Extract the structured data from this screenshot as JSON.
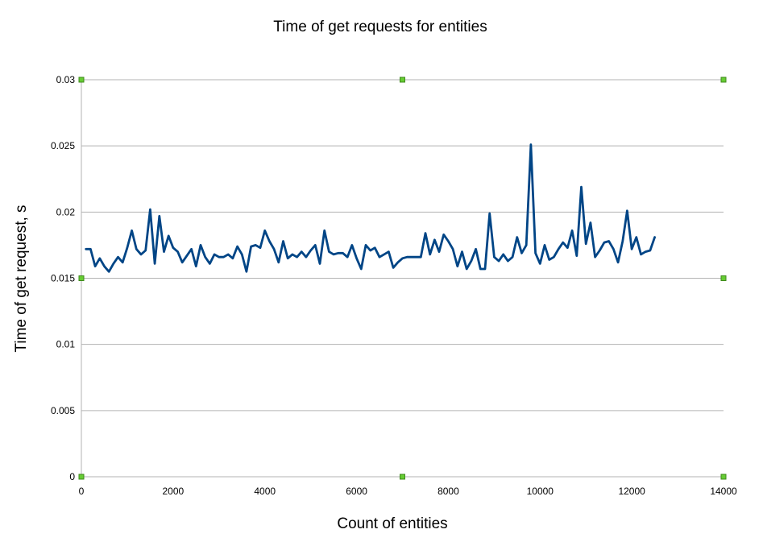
{
  "chart_data": {
    "type": "line",
    "title": "Time of get requests for entities",
    "xlabel": "Count of entities",
    "ylabel": "Time of get request, s",
    "xlim": [
      0,
      14000
    ],
    "ylim": [
      0,
      0.03
    ],
    "xticks": [
      0,
      2000,
      4000,
      6000,
      8000,
      10000,
      12000,
      14000
    ],
    "yticks": [
      0,
      0.005,
      0.01,
      0.015,
      0.02,
      0.025,
      0.03
    ],
    "xtick_labels": [
      "0",
      "2000",
      "4000",
      "6000",
      "8000",
      "10000",
      "12000",
      "14000"
    ],
    "ytick_labels": [
      "0",
      "0.005",
      "0.01",
      "0.015",
      "0.02",
      "0.025",
      "0.03"
    ],
    "grid": true,
    "series": [
      {
        "name": "Time of get request",
        "color": "#004586",
        "x": [
          100,
          200,
          300,
          400,
          500,
          600,
          700,
          800,
          900,
          1000,
          1100,
          1200,
          1300,
          1400,
          1500,
          1600,
          1700,
          1800,
          1900,
          2000,
          2100,
          2200,
          2300,
          2400,
          2500,
          2600,
          2700,
          2800,
          2900,
          3000,
          3100,
          3200,
          3300,
          3400,
          3500,
          3600,
          3700,
          3800,
          3900,
          4000,
          4100,
          4200,
          4300,
          4400,
          4500,
          4600,
          4700,
          4800,
          4900,
          5000,
          5100,
          5200,
          5300,
          5400,
          5500,
          5600,
          5700,
          5800,
          5900,
          6000,
          6100,
          6200,
          6300,
          6400,
          6500,
          6600,
          6700,
          6800,
          6900,
          7000,
          7100,
          7200,
          7300,
          7400,
          7500,
          7600,
          7700,
          7800,
          7900,
          8000,
          8100,
          8200,
          8300,
          8400,
          8500,
          8600,
          8700,
          8800,
          8900,
          9000,
          9100,
          9200,
          9300,
          9400,
          9500,
          9600,
          9700,
          9800,
          9900,
          10000,
          10100,
          10200,
          10300,
          10400,
          10500,
          10600,
          10700,
          10800,
          10900,
          11000,
          11100,
          11200,
          11300,
          11400,
          11500,
          11600,
          11700,
          11800,
          11900,
          12000,
          12100,
          12200,
          12300,
          12400,
          12500
        ],
        "y": [
          0.0172,
          0.0172,
          0.0159,
          0.0165,
          0.0159,
          0.0155,
          0.0161,
          0.0166,
          0.0162,
          0.0173,
          0.0186,
          0.0172,
          0.0168,
          0.0171,
          0.0202,
          0.0161,
          0.0197,
          0.017,
          0.0182,
          0.0173,
          0.017,
          0.0162,
          0.0167,
          0.0172,
          0.0159,
          0.0175,
          0.0166,
          0.0161,
          0.0168,
          0.0166,
          0.0166,
          0.0168,
          0.0165,
          0.0174,
          0.0168,
          0.0155,
          0.0174,
          0.0175,
          0.0173,
          0.0186,
          0.0178,
          0.0172,
          0.0162,
          0.0178,
          0.0165,
          0.0168,
          0.0166,
          0.017,
          0.0166,
          0.0171,
          0.0175,
          0.0161,
          0.0186,
          0.017,
          0.0168,
          0.0169,
          0.0169,
          0.0166,
          0.0175,
          0.0165,
          0.0157,
          0.0175,
          0.0171,
          0.0173,
          0.0166,
          0.0168,
          0.017,
          0.0158,
          0.0162,
          0.0165,
          0.0166,
          0.0166,
          0.0166,
          0.0166,
          0.0184,
          0.0168,
          0.0179,
          0.017,
          0.0183,
          0.0178,
          0.0172,
          0.0159,
          0.017,
          0.0157,
          0.0163,
          0.0172,
          0.0157,
          0.0157,
          0.0199,
          0.0166,
          0.0163,
          0.0168,
          0.0163,
          0.0166,
          0.0181,
          0.0169,
          0.0175,
          0.0251,
          0.0169,
          0.0161,
          0.0175,
          0.0164,
          0.0166,
          0.0172,
          0.0177,
          0.0173,
          0.0186,
          0.0167,
          0.0219,
          0.0176,
          0.0192,
          0.0166,
          0.0171,
          0.0177,
          0.0178,
          0.0172,
          0.0162,
          0.0178,
          0.0201,
          0.0172,
          0.0181,
          0.0168,
          0.017,
          0.0171,
          0.0181
        ]
      }
    ]
  }
}
